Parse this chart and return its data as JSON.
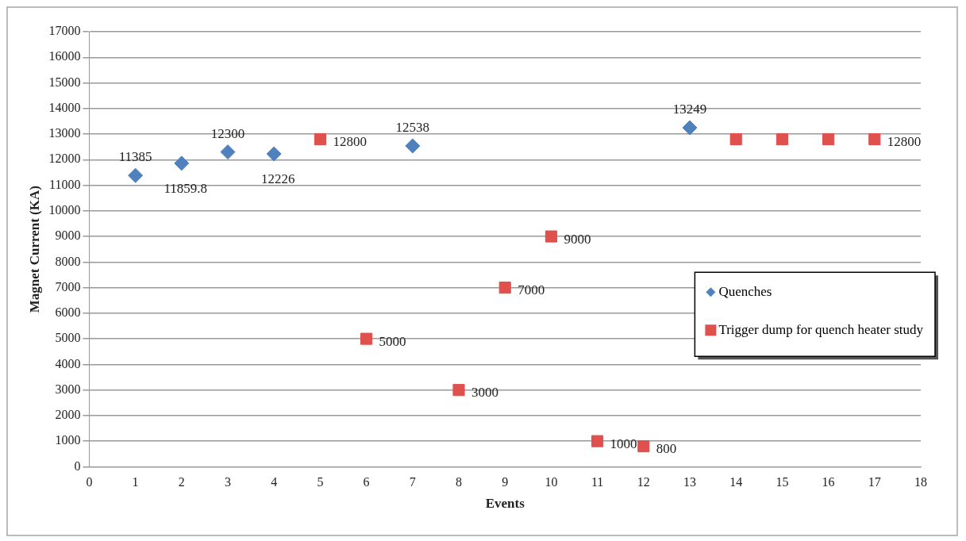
{
  "chart_data": {
    "type": "scatter",
    "xlabel": "Events",
    "ylabel": "Magnet Current (KA)",
    "xlim": [
      0,
      18
    ],
    "xticks": [
      0,
      1,
      2,
      3,
      4,
      5,
      6,
      7,
      8,
      9,
      10,
      11,
      12,
      13,
      14,
      15,
      16,
      17,
      18
    ],
    "ylim": [
      0,
      17000
    ],
    "yticks": [
      0,
      1000,
      2000,
      3000,
      4000,
      5000,
      6000,
      7000,
      8000,
      9000,
      10000,
      11000,
      12000,
      13000,
      14000,
      15000,
      16000,
      17000
    ],
    "grid": "y",
    "legend": "right",
    "series": [
      {
        "name": "Quenches",
        "color": "#4f81bd",
        "marker": "diamond",
        "x": [
          1,
          2,
          3,
          4,
          7,
          13
        ],
        "values": [
          11385,
          11859.8,
          12300,
          12226,
          12538,
          13249
        ],
        "value_labels": [
          "11385",
          "11859.8",
          "12300",
          "12226",
          "12538",
          "13249"
        ]
      },
      {
        "name": "Trigger dump for quench heater study",
        "color": "#e0504d",
        "marker": "square",
        "x": [
          5,
          6,
          8,
          9,
          10,
          11,
          12,
          14,
          15,
          16,
          17
        ],
        "values": [
          12800,
          5000,
          3000,
          7000,
          9000,
          1000,
          800,
          12800,
          12800,
          12800,
          12800
        ],
        "value_labels": [
          "12800",
          "5000",
          "3000",
          "7000",
          "9000",
          "1000",
          "800",
          null,
          null,
          null,
          "12800"
        ]
      }
    ]
  }
}
